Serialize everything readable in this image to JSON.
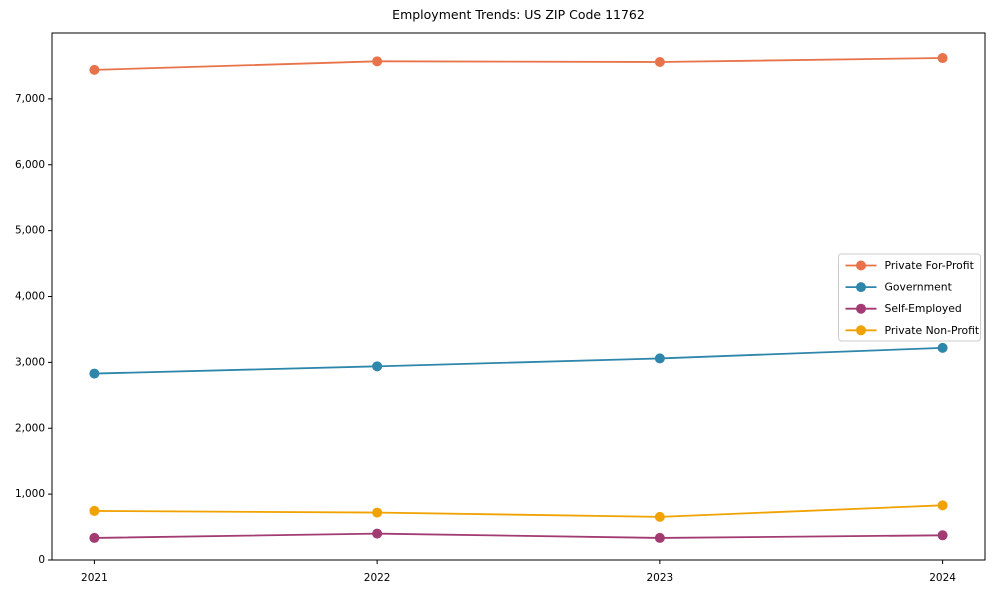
{
  "chart": {
    "title": "Employment Trends: US ZIP Code 11762",
    "background_color": "#ffffff",
    "axis_color": "#000000",
    "legend_border_color": "#cccccc",
    "legend_background": "#ffffff",
    "legend_position": "center right"
  },
  "chart_data": {
    "type": "line",
    "title": "Employment Trends: US ZIP Code 11762",
    "xlabel": "",
    "ylabel": "",
    "grid": false,
    "marker": "circle",
    "x_categories": [
      "2021",
      "2022",
      "2023",
      "2024"
    ],
    "series": [
      {
        "name": "Private For-Profit",
        "color": "#E8734A",
        "values": [
          7440,
          7570,
          7560,
          7620
        ]
      },
      {
        "name": "Government",
        "color": "#2E86AB",
        "values": [
          2830,
          2940,
          3060,
          3220
        ]
      },
      {
        "name": "Self-Employed",
        "color": "#A23B72",
        "values": [
          335,
          400,
          335,
          375
        ]
      },
      {
        "name": "Private Non-Profit",
        "color": "#F0A202",
        "values": [
          745,
          720,
          655,
          830
        ]
      }
    ],
    "ylim": [
      0,
      8000
    ],
    "yticks": [
      0,
      1000,
      2000,
      3000,
      4000,
      5000,
      6000,
      7000
    ],
    "ytick_labels": [
      "0",
      "1,000",
      "2,000",
      "3,000",
      "4,000",
      "5,000",
      "6,000",
      "7,000"
    ],
    "legend_entries": [
      "Private For-Profit",
      "Government",
      "Self-Employed",
      "Private Non-Profit"
    ],
    "legend_position": "center right"
  }
}
